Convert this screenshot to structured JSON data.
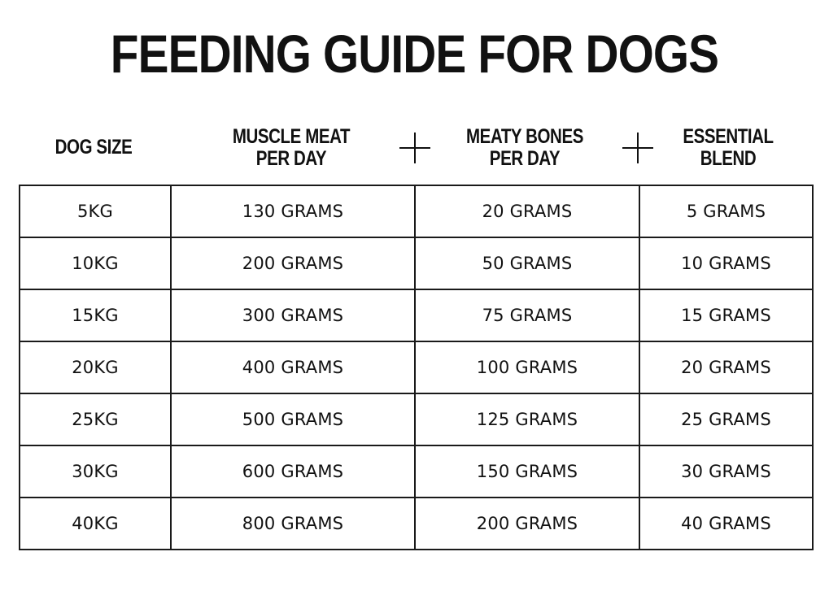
{
  "title": "FEEDING GUIDE FOR DOGS",
  "headers": {
    "dog_size": [
      "DOG SIZE"
    ],
    "muscle_meat": [
      "MUSCLE MEAT",
      "PER DAY"
    ],
    "meaty_bones": [
      "MEATY BONES",
      "PER DAY"
    ],
    "essential_blend": [
      "ESSENTIAL",
      "BLEND"
    ]
  },
  "rows": [
    {
      "size": "5KG",
      "muscle_meat": "130 GRAMS",
      "meaty_bones": "20 GRAMS",
      "essential_blend": "5 GRAMS"
    },
    {
      "size": "10KG",
      "muscle_meat": "200 GRAMS",
      "meaty_bones": "50 GRAMS",
      "essential_blend": "10 GRAMS"
    },
    {
      "size": "15KG",
      "muscle_meat": "300 GRAMS",
      "meaty_bones": "75 GRAMS",
      "essential_blend": "15 GRAMS"
    },
    {
      "size": "20KG",
      "muscle_meat": "400 GRAMS",
      "meaty_bones": "100 GRAMS",
      "essential_blend": "20 GRAMS"
    },
    {
      "size": "25KG",
      "muscle_meat": "500 GRAMS",
      "meaty_bones": "125 GRAMS",
      "essential_blend": "25 GRAMS"
    },
    {
      "size": "30KG",
      "muscle_meat": "600 GRAMS",
      "meaty_bones": "150 GRAMS",
      "essential_blend": "30 GRAMS"
    },
    {
      "size": "40KG",
      "muscle_meat": "800 GRAMS",
      "meaty_bones": "200 GRAMS",
      "essential_blend": "40 GRAMS"
    }
  ],
  "icons": {
    "plus_1": "plus-icon",
    "plus_2": "plus-icon"
  }
}
